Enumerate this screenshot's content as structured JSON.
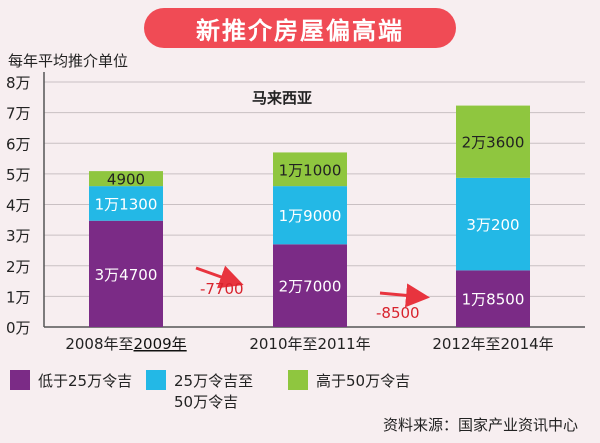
{
  "header": {
    "title": "新推介房屋偏高端"
  },
  "chart_data": {
    "type": "bar",
    "stacked": true,
    "title": "新推介房屋偏高端",
    "ylabel": "每年平均推介单位",
    "subtitle": "马来西亚",
    "ylim": [
      0,
      80000
    ],
    "y_ticks": [
      "0万",
      "1万",
      "2万",
      "3万",
      "4万",
      "5万",
      "6万",
      "7万",
      "8万"
    ],
    "categories": [
      {
        "pre": "2008年至",
        "highlight": "2009年"
      },
      {
        "pre": "2010年至2011年",
        "highlight": ""
      },
      {
        "pre": "2012年至2014年",
        "highlight": ""
      }
    ],
    "series": [
      {
        "name": "低于25万令吉",
        "color": "#7b2b86",
        "values": [
          34700,
          27000,
          18500
        ],
        "labels": [
          "3万4700",
          "2万7000",
          "1万8500"
        ]
      },
      {
        "name": "25万令吉至50万令吉",
        "name_lines": [
          "25万令吉至",
          "50万令吉"
        ],
        "color": "#23b8e6",
        "values": [
          11300,
          19000,
          30200
        ],
        "labels": [
          "1万1300",
          "1万9000",
          "3万200"
        ]
      },
      {
        "name": "高于50万令吉",
        "color": "#8fc63f",
        "values": [
          4900,
          11000,
          23600
        ],
        "labels": [
          "4900",
          "1万1000",
          "2万3600"
        ]
      }
    ],
    "annotations": [
      {
        "text": "-7700",
        "between": [
          0,
          1
        ]
      },
      {
        "text": "-8500",
        "between": [
          1,
          2
        ]
      }
    ],
    "source": "资料来源：国家产业资讯中心"
  }
}
